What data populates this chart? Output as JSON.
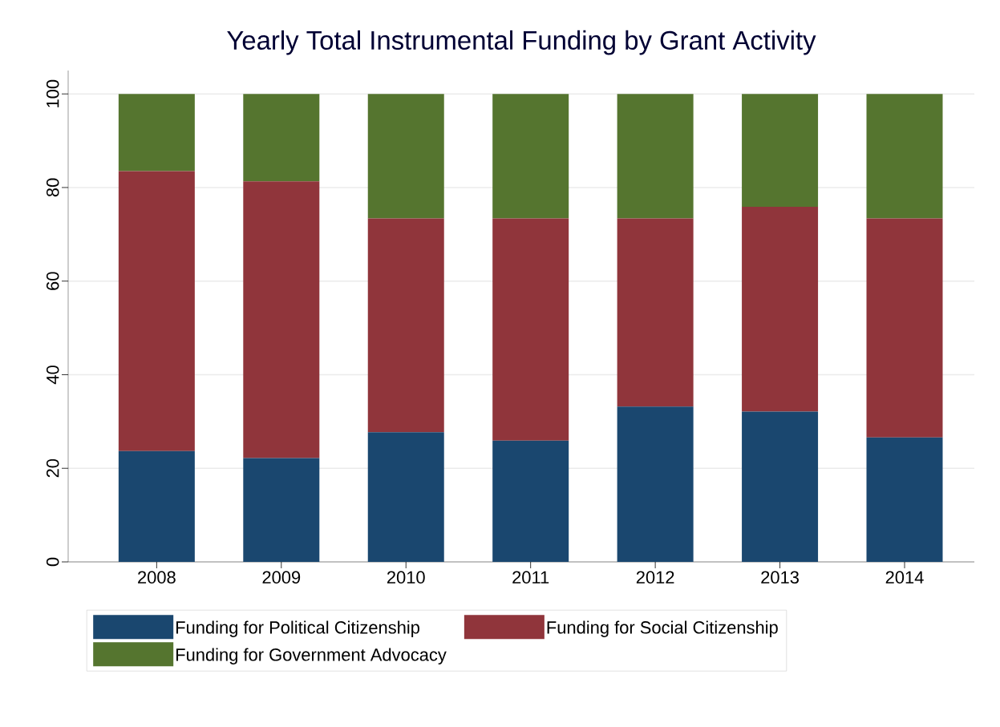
{
  "chart_data": {
    "type": "bar",
    "title": "Yearly Total Instrumental Funding by Grant Activity",
    "categories": [
      "2008",
      "2009",
      "2010",
      "2011",
      "2012",
      "2013",
      "2014"
    ],
    "stacked": true,
    "series": [
      {
        "name": "Funding for Political Citizenship",
        "color": "#1a476f",
        "values": [
          23.7,
          22.2,
          27.7,
          25.9,
          33.2,
          32.1,
          26.6
        ]
      },
      {
        "name": "Funding for Social Citizenship",
        "color": "#90353b",
        "values": [
          59.8,
          59.1,
          45.7,
          47.5,
          40.2,
          43.8,
          46.8
        ]
      },
      {
        "name": "Funding for Government Advocacy",
        "color": "#55752f",
        "values": [
          16.5,
          18.7,
          26.6,
          26.6,
          26.6,
          24.1,
          26.6
        ]
      }
    ],
    "ylim": [
      0,
      105
    ],
    "yticks": [
      0,
      20,
      40,
      60,
      80,
      100
    ],
    "grid": "y",
    "legend": "bottom"
  }
}
